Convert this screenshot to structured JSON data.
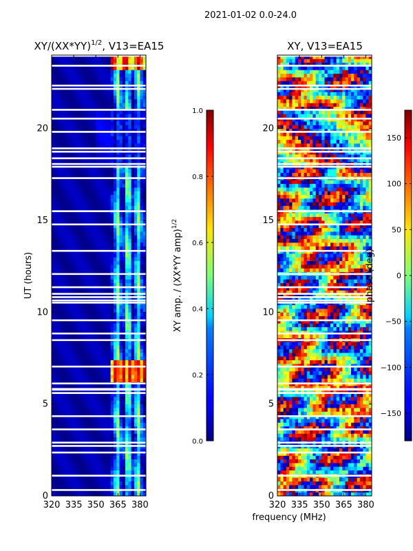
{
  "suptitle": "2021-01-02 0.0-24.0",
  "shared_xlabel": "frequency (MHz)",
  "chart_data": [
    {
      "type": "heatmap",
      "title": "XY/(XX*YY)^{1/2}, V13=EA15",
      "title_main": "XY/(XX*YY)",
      "title_sup": "1/2",
      "title_tail": ", V13=EA15",
      "xlabel": "frequency (MHz)",
      "ylabel": "UT (hours)",
      "xlim": [
        320,
        384
      ],
      "ylim": [
        0,
        24
      ],
      "xticks": [
        320,
        335,
        350,
        365,
        380
      ],
      "yticks": [
        0,
        5,
        10,
        15,
        20
      ],
      "colorbar": {
        "label": "XY amp. / (XX*YY amp)^{1/2}",
        "label_main": "XY amp. / (XX*YY amp)",
        "label_sup": "1/2",
        "range": [
          0.0,
          1.0
        ],
        "ticks": [
          0.0,
          0.2,
          0.4,
          0.6,
          0.8,
          1.0
        ],
        "tick_labels": [
          "0.0",
          "0.2",
          "0.4",
          "0.6",
          "0.8",
          "1.0"
        ]
      },
      "colormap": "jet",
      "notes": "Near-zero amplitude (dark blue) below ~361 MHz; elevated 0.2-0.6 values in 361-384 MHz, peaking ~0.9-1.0 around 6-7 UT and near 24 UT"
    },
    {
      "type": "heatmap",
      "title": "XY, V13=EA15",
      "xlabel": "frequency (MHz)",
      "ylabel": "",
      "xlim": [
        320,
        384
      ],
      "ylim": [
        0,
        24
      ],
      "xticks": [
        320,
        335,
        350,
        365,
        380
      ],
      "yticks": [
        0,
        5,
        10,
        15,
        20
      ],
      "colorbar": {
        "label": "phase (deg)",
        "range": [
          -180,
          180
        ],
        "ticks": [
          -150,
          -100,
          -50,
          0,
          50,
          100,
          150
        ],
        "tick_labels": [
          "−150",
          "−100",
          "−50",
          "0",
          "50",
          "100",
          "150"
        ]
      },
      "colormap": "jet",
      "notes": "Phase varies across the full -180..180 range with broad diagonal structures"
    }
  ]
}
